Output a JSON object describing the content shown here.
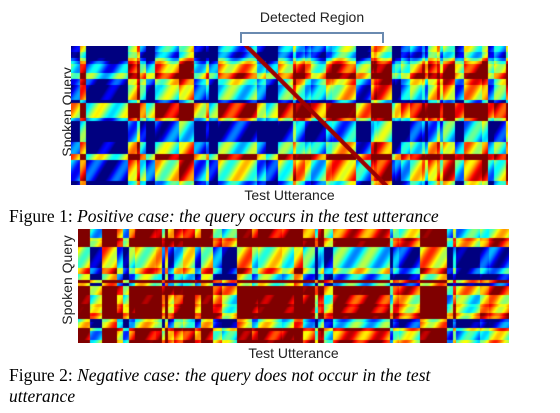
{
  "figure1": {
    "region_label": "Detected Region",
    "ylabel": "Spoken Query",
    "xlabel": "Test Utterance",
    "caption_prefix": "Figure 1:",
    "caption_text": "Positive case: the query occurs in the test utterance"
  },
  "figure2": {
    "ylabel": "Spoken Query",
    "xlabel": "Test Utterance",
    "caption_prefix": "Figure 2:",
    "caption_line1": "Negative case: the query does not occur in the test",
    "caption_line2": "utterance"
  },
  "colors": {
    "colormap": "jet",
    "bracket": "#6a8ab0"
  }
}
